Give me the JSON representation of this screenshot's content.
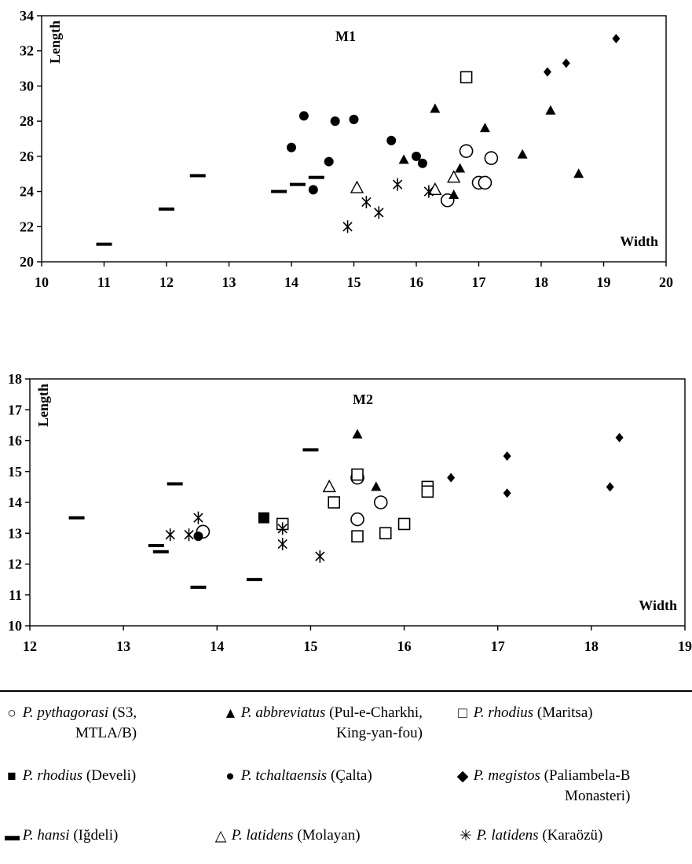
{
  "chart_data": [
    {
      "type": "scatter",
      "title": "M1",
      "xlabel": "Width",
      "ylabel": "Length",
      "xlim": [
        10,
        20
      ],
      "ylim": [
        20,
        34
      ],
      "xticks": [
        "10",
        "11",
        "12",
        "13",
        "14",
        "15",
        "16",
        "17",
        "18",
        "19",
        "20"
      ],
      "yticks": [
        "20",
        "22",
        "24",
        "26",
        "28",
        "30",
        "32",
        "34"
      ],
      "grid": false,
      "series": [
        {
          "name": "P. pythagorasi (S3, MTLA/B)",
          "marker": "open-circle",
          "x": [
            16.5,
            16.8,
            17.0,
            17.1,
            17.2
          ],
          "y": [
            23.5,
            26.3,
            24.5,
            24.5,
            25.9
          ]
        },
        {
          "name": "P. abbreviatus (Pul-e-Charkhi, King-yan-fou)",
          "marker": "filled-triangle",
          "x": [
            15.8,
            16.3,
            16.6,
            16.7,
            17.1,
            17.7,
            18.15,
            18.6
          ],
          "y": [
            25.8,
            28.7,
            23.8,
            25.3,
            27.6,
            26.1,
            28.6,
            25.0
          ]
        },
        {
          "name": "P. rhodius (Maritsa)",
          "marker": "open-square",
          "x": [
            16.8
          ],
          "y": [
            30.5
          ]
        },
        {
          "name": "P. tchaltaensis (Çalta)",
          "marker": "filled-circle",
          "x": [
            14.0,
            14.2,
            14.35,
            14.6,
            14.7,
            15.0,
            15.6,
            16.0,
            16.1
          ],
          "y": [
            26.5,
            28.3,
            24.1,
            25.7,
            28.0,
            28.1,
            26.9,
            26.0,
            25.6
          ]
        },
        {
          "name": "P. megistos (Paliambela-B Monasteri)",
          "marker": "filled-diamond",
          "x": [
            18.1,
            18.4,
            19.2
          ],
          "y": [
            30.8,
            31.3,
            32.7
          ]
        },
        {
          "name": "P. hansi (Iğdeli)",
          "marker": "dash",
          "x": [
            11.0,
            12.0,
            12.5,
            13.8,
            14.1,
            14.4
          ],
          "y": [
            21.0,
            23.0,
            24.9,
            24.0,
            24.4,
            24.8
          ]
        },
        {
          "name": "P. latidens (Molayan)",
          "marker": "open-triangle",
          "x": [
            15.05,
            16.3,
            16.6
          ],
          "y": [
            24.2,
            24.1,
            24.8
          ]
        },
        {
          "name": "P. latidens (Karaözü)",
          "marker": "asterisk",
          "x": [
            14.9,
            15.2,
            15.4,
            15.7,
            16.2
          ],
          "y": [
            22.0,
            23.4,
            22.8,
            24.4,
            24.0
          ]
        }
      ]
    },
    {
      "type": "scatter",
      "title": "M2",
      "xlabel": "Width",
      "ylabel": "Length",
      "xlim": [
        12,
        19
      ],
      "ylim": [
        10,
        18
      ],
      "xticks": [
        "12",
        "13",
        "14",
        "15",
        "16",
        "17",
        "18",
        "19"
      ],
      "yticks": [
        "10",
        "11",
        "12",
        "13",
        "14",
        "15",
        "16",
        "17",
        "18"
      ],
      "grid": false,
      "series": [
        {
          "name": "P. pythagorasi (S3, MTLA/B)",
          "marker": "open-circle",
          "x": [
            13.85,
            15.5,
            15.5,
            15.75
          ],
          "y": [
            13.05,
            14.8,
            13.45,
            14.0
          ]
        },
        {
          "name": "P. abbreviatus (Pul-e-Charkhi, King-yan-fou)",
          "marker": "filled-triangle",
          "x": [
            15.5,
            15.7
          ],
          "y": [
            16.2,
            14.5
          ]
        },
        {
          "name": "P. rhodius (Maritsa)",
          "marker": "open-square",
          "x": [
            14.7,
            15.25,
            15.5,
            15.5,
            15.8,
            16.0,
            16.25,
            16.25
          ],
          "y": [
            13.3,
            14.0,
            14.9,
            12.9,
            13.0,
            13.3,
            14.5,
            14.35
          ]
        },
        {
          "name": "P. rhodius (Develi)",
          "marker": "filled-square",
          "x": [
            14.5
          ],
          "y": [
            13.5
          ]
        },
        {
          "name": "P. tchaltaensis (Çalta)",
          "marker": "filled-circle",
          "x": [
            13.8
          ],
          "y": [
            12.9
          ]
        },
        {
          "name": "P. megistos (Paliambela-B Monasteri)",
          "marker": "filled-diamond",
          "x": [
            16.5,
            17.1,
            17.1,
            18.2,
            18.3
          ],
          "y": [
            14.8,
            15.5,
            14.3,
            14.5,
            16.1
          ]
        },
        {
          "name": "P. hansi (Iğdeli)",
          "marker": "dash",
          "x": [
            12.5,
            13.35,
            13.4,
            13.55,
            13.8,
            14.4,
            15.0
          ],
          "y": [
            13.5,
            12.6,
            12.4,
            14.6,
            11.25,
            11.5,
            15.7
          ]
        },
        {
          "name": "P. latidens (Molayan)",
          "marker": "open-triangle",
          "x": [
            15.2
          ],
          "y": [
            14.5
          ]
        },
        {
          "name": "P. latidens (Karaözü)",
          "marker": "asterisk",
          "x": [
            13.5,
            13.7,
            13.8,
            14.7,
            14.7,
            15.1
          ],
          "y": [
            12.95,
            12.95,
            13.5,
            13.15,
            12.65,
            12.25
          ]
        }
      ]
    }
  ],
  "legend": {
    "items": [
      {
        "marker": "open-circle",
        "glyph": "○",
        "species": "P. pythagorasi",
        "locality": "(S3,",
        "locality_cont": "MTLA/B)"
      },
      {
        "marker": "filled-triangle",
        "glyph": "▲",
        "species": "P. abbreviatus",
        "locality": "(Pul-e-Charkhi,",
        "locality_cont": "King-yan-fou)"
      },
      {
        "marker": "open-square",
        "glyph": "□",
        "species": "P. rhodius",
        "locality": "(Maritsa)",
        "locality_cont": ""
      },
      {
        "marker": "filled-square",
        "glyph": "■",
        "species": "P. rhodius",
        "locality": "(Develi)",
        "locality_cont": ""
      },
      {
        "marker": "filled-circle",
        "glyph": "●",
        "species": "P. tchaltaensis",
        "locality": "(Çalta)",
        "locality_cont": ""
      },
      {
        "marker": "filled-diamond",
        "glyph": "◆",
        "species": "P. megistos",
        "locality": "(Paliambela-B",
        "locality_cont": "Monasteri)"
      },
      {
        "marker": "dash",
        "glyph": "▬",
        "species": "P. hansi",
        "locality": "(Iğdeli)",
        "locality_cont": ""
      },
      {
        "marker": "open-triangle",
        "glyph": "△",
        "species": "P. latidens",
        "locality": "(Molayan)",
        "locality_cont": ""
      },
      {
        "marker": "asterisk",
        "glyph": "✳",
        "species": "P. latidens",
        "locality": "(Karaözü)",
        "locality_cont": ""
      }
    ]
  }
}
